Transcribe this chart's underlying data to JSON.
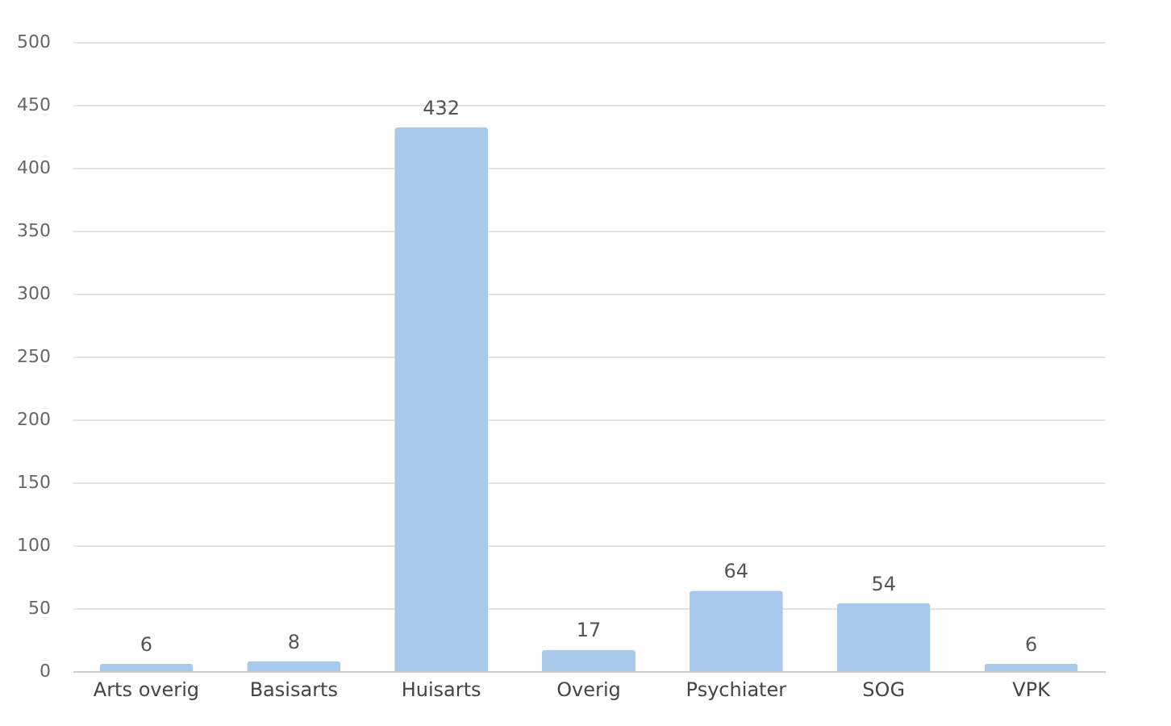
{
  "chart_data": {
    "type": "bar",
    "categories": [
      "Arts overig",
      "Basisarts",
      "Huisarts",
      "Overig",
      "Psychiater",
      "SOG",
      "VPK"
    ],
    "values": [
      6,
      8,
      432,
      17,
      64,
      54,
      6
    ],
    "color": "#a9c9ec",
    "ylim": [
      0,
      500
    ],
    "yticks": [
      0,
      50,
      100,
      150,
      200,
      250,
      300,
      350,
      400,
      450,
      500
    ],
    "grid": "y",
    "data_labels": true
  }
}
